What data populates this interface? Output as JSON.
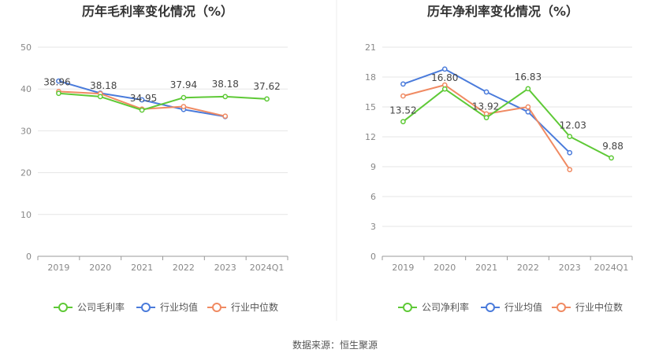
{
  "source_text": "数据来源：恒生聚源",
  "colors": {
    "company": "#5ec936",
    "industry_avg": "#4a7bdb",
    "industry_median": "#f08a62",
    "grid": "#e6e6e6",
    "axis": "#999999",
    "divider": "#eeeeee"
  },
  "chart_data": [
    {
      "type": "line",
      "title": "历年毛利率变化情况（%）",
      "categories": [
        "2019",
        "2020",
        "2021",
        "2022",
        "2023",
        "2024Q1"
      ],
      "ylim": [
        0,
        50
      ],
      "yticks": [
        0,
        10,
        20,
        30,
        40,
        50
      ],
      "legend_position": "bottom",
      "series": [
        {
          "name": "公司毛利率",
          "key": "company",
          "values": [
            38.96,
            38.18,
            34.95,
            37.94,
            38.18,
            37.62
          ],
          "show_labels": true
        },
        {
          "name": "行业均值",
          "key": "industry_avg",
          "values": [
            41.9,
            39.0,
            37.4,
            35.1,
            33.4,
            null
          ],
          "show_labels": false
        },
        {
          "name": "行业中位数",
          "key": "industry_median",
          "values": [
            39.4,
            38.9,
            35.2,
            35.8,
            33.5,
            null
          ],
          "show_labels": false
        }
      ]
    },
    {
      "type": "line",
      "title": "历年净利率变化情况（%）",
      "categories": [
        "2019",
        "2020",
        "2021",
        "2022",
        "2023",
        "2024Q1"
      ],
      "ylim": [
        0,
        21
      ],
      "yticks": [
        0,
        3,
        6,
        9,
        12,
        15,
        18,
        21
      ],
      "legend_position": "bottom",
      "series": [
        {
          "name": "公司净利率",
          "key": "company",
          "values": [
            13.52,
            16.8,
            13.92,
            16.83,
            12.03,
            9.88
          ],
          "show_labels": true
        },
        {
          "name": "行业均值",
          "key": "industry_avg",
          "values": [
            17.3,
            18.8,
            16.5,
            14.5,
            10.4,
            null
          ],
          "show_labels": false
        },
        {
          "name": "行业中位数",
          "key": "industry_median",
          "values": [
            16.1,
            17.2,
            14.3,
            15.0,
            8.7,
            null
          ],
          "show_labels": false
        }
      ]
    }
  ]
}
